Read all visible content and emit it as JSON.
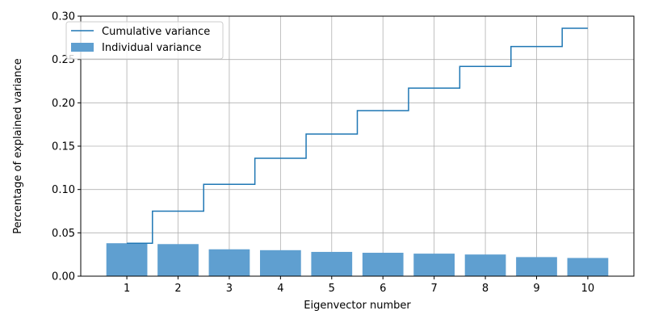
{
  "chart_data": {
    "type": "bar",
    "categories": [
      "1",
      "2",
      "3",
      "4",
      "5",
      "6",
      "7",
      "8",
      "9",
      "10"
    ],
    "series": [
      {
        "name": "Individual variance",
        "type": "bar",
        "color": "#5f9fd0",
        "values": [
          0.038,
          0.037,
          0.031,
          0.03,
          0.028,
          0.027,
          0.026,
          0.025,
          0.022,
          0.021
        ]
      },
      {
        "name": "Cumulative variance",
        "type": "step",
        "color": "#1f77b4",
        "values": [
          0.038,
          0.075,
          0.106,
          0.136,
          0.164,
          0.191,
          0.217,
          0.242,
          0.265,
          0.286
        ]
      }
    ],
    "xlabel": "Eigenvector number",
    "ylabel": "Percentage of explained variance",
    "ylim": [
      0,
      0.3
    ],
    "yticks": [
      "0.00",
      "0.05",
      "0.10",
      "0.15",
      "0.20",
      "0.25",
      "0.30"
    ],
    "grid": true,
    "legend_position": "top-left"
  }
}
